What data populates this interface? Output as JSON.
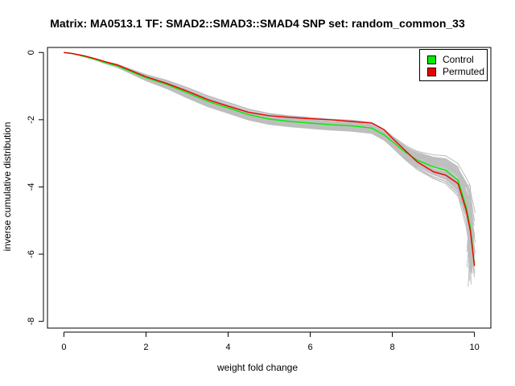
{
  "chart_data": {
    "type": "line",
    "title": "Matrix: MA0513.1 TF: SMAD2::SMAD3::SMAD4 SNP set: random_common_33",
    "xlabel": "weight fold change",
    "ylabel": "inverse cumulative distribution",
    "xlim": [
      -0.4,
      10.4
    ],
    "ylim": [
      -8.2,
      0.15
    ],
    "x_ticks": [
      "0",
      "2",
      "4",
      "6",
      "8",
      "10"
    ],
    "y_ticks": [
      "0",
      "-2",
      "-4",
      "-6",
      "-8"
    ],
    "grid": false,
    "legend_position": "top-right",
    "colors": {
      "control": "#00ee00",
      "permuted": "#ee0000",
      "background": "#bebebe"
    },
    "legend": [
      {
        "label": "Control",
        "color": "#00ee00"
      },
      {
        "label": "Permuted",
        "color": "#ee0000"
      }
    ],
    "series": [
      {
        "name": "Control",
        "color": "#00ee00",
        "x": [
          0,
          0.2,
          0.5,
          0.8,
          1.0,
          1.3,
          1.6,
          2.0,
          2.5,
          3.0,
          3.5,
          4.0,
          4.5,
          5.0,
          5.5,
          6.0,
          6.5,
          7.0,
          7.5,
          7.8,
          8.0,
          8.3,
          8.6,
          9.0,
          9.3,
          9.6,
          9.8,
          9.9,
          10.0
        ],
        "y": [
          0,
          -0.03,
          -0.12,
          -0.22,
          -0.3,
          -0.4,
          -0.55,
          -0.75,
          -0.95,
          -1.2,
          -1.45,
          -1.65,
          -1.85,
          -1.98,
          -2.05,
          -2.1,
          -2.15,
          -2.18,
          -2.25,
          -2.45,
          -2.65,
          -2.95,
          -3.2,
          -3.4,
          -3.5,
          -3.8,
          -4.6,
          -5.2,
          -6.3
        ]
      },
      {
        "name": "Permuted",
        "color": "#ee0000",
        "x": [
          0,
          0.2,
          0.5,
          0.8,
          1.0,
          1.3,
          1.6,
          2.0,
          2.5,
          3.0,
          3.5,
          4.0,
          4.5,
          5.0,
          5.5,
          6.0,
          6.5,
          7.0,
          7.5,
          7.8,
          8.0,
          8.3,
          8.6,
          9.0,
          9.3,
          9.6,
          9.8,
          9.9,
          10.0
        ],
        "y": [
          0,
          -0.03,
          -0.1,
          -0.2,
          -0.27,
          -0.37,
          -0.52,
          -0.72,
          -0.92,
          -1.15,
          -1.4,
          -1.6,
          -1.78,
          -1.88,
          -1.93,
          -1.97,
          -2.0,
          -2.05,
          -2.1,
          -2.3,
          -2.55,
          -2.9,
          -3.25,
          -3.55,
          -3.65,
          -3.9,
          -4.7,
          -5.3,
          -6.35
        ]
      }
    ]
  }
}
